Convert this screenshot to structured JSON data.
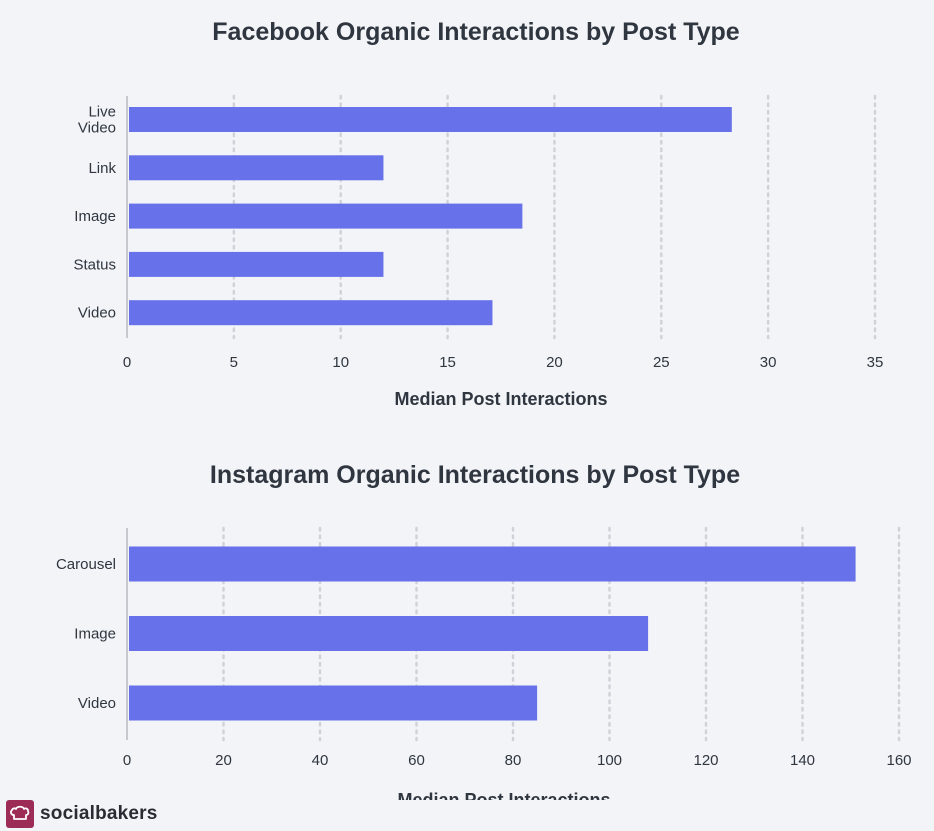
{
  "chart_data": [
    {
      "type": "bar",
      "orientation": "horizontal",
      "title": "Facebook Organic Interactions by Post Type",
      "categories": [
        "Live Video",
        "Link",
        "Image",
        "Status",
        "Video"
      ],
      "values": [
        28.3,
        12,
        18.5,
        12,
        17.1
      ],
      "xlabel": "Median Post Interactions",
      "xlim": [
        0,
        35
      ],
      "xticks": [
        0,
        5,
        10,
        15,
        20,
        25,
        30,
        35
      ],
      "grid": true,
      "bar_color": "#6771ea"
    },
    {
      "type": "bar",
      "orientation": "horizontal",
      "title": "Instagram Organic Interactions by Post Type",
      "categories": [
        "Carousel",
        "Image",
        "Video"
      ],
      "values": [
        151,
        108,
        85
      ],
      "xlabel": "Median Post Interactions",
      "xlim": [
        0,
        160
      ],
      "xticks": [
        0,
        20,
        40,
        60,
        80,
        100,
        120,
        140,
        160
      ],
      "grid": true,
      "bar_color": "#6771ea"
    }
  ],
  "brand": {
    "name": "socialbakers",
    "logo_icon": "chef-hat-icon",
    "color": "#9c2b55"
  },
  "colors": {
    "background": "#f2f4f7",
    "grid": "#cfd3d9",
    "axis": "#c5c9cf",
    "text": "#2f3640"
  }
}
